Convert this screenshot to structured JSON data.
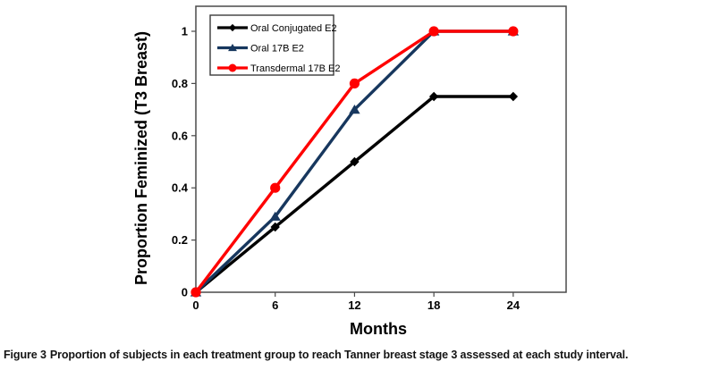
{
  "figure": {
    "caption_label": "Figure 3",
    "caption_text": "Proportion of subjects in each treatment group to reach Tanner breast stage 3 assessed at each study interval."
  },
  "chart_data": {
    "type": "line",
    "title": "",
    "xlabel": "Months",
    "ylabel": "Proportion Feminized (T3 Breast)",
    "x": [
      0,
      6,
      12,
      18,
      24
    ],
    "x_ticks": [
      0,
      6,
      12,
      18,
      24
    ],
    "y_ticks": [
      0,
      0.2,
      0.4,
      0.6,
      0.8,
      1
    ],
    "xlim": [
      0,
      28
    ],
    "ylim": [
      0,
      1.1
    ],
    "grid": false,
    "legend_position": "top-left",
    "axis_color": "#4a4a4a",
    "background_color": "#ffffff",
    "series": [
      {
        "name": "Oral Conjugated E2",
        "color": "#000000",
        "marker": "diamond",
        "values": [
          0,
          0.25,
          0.5,
          0.75,
          0.75
        ]
      },
      {
        "name": "Oral 17B E2",
        "color": "#17375E",
        "marker": "triangle",
        "values": [
          0,
          0.29,
          0.7,
          1,
          1
        ]
      },
      {
        "name": "Transdermal 17B E2",
        "color": "#FF0000",
        "marker": "circle",
        "values": [
          0,
          0.4,
          0.8,
          1,
          1
        ]
      }
    ]
  }
}
